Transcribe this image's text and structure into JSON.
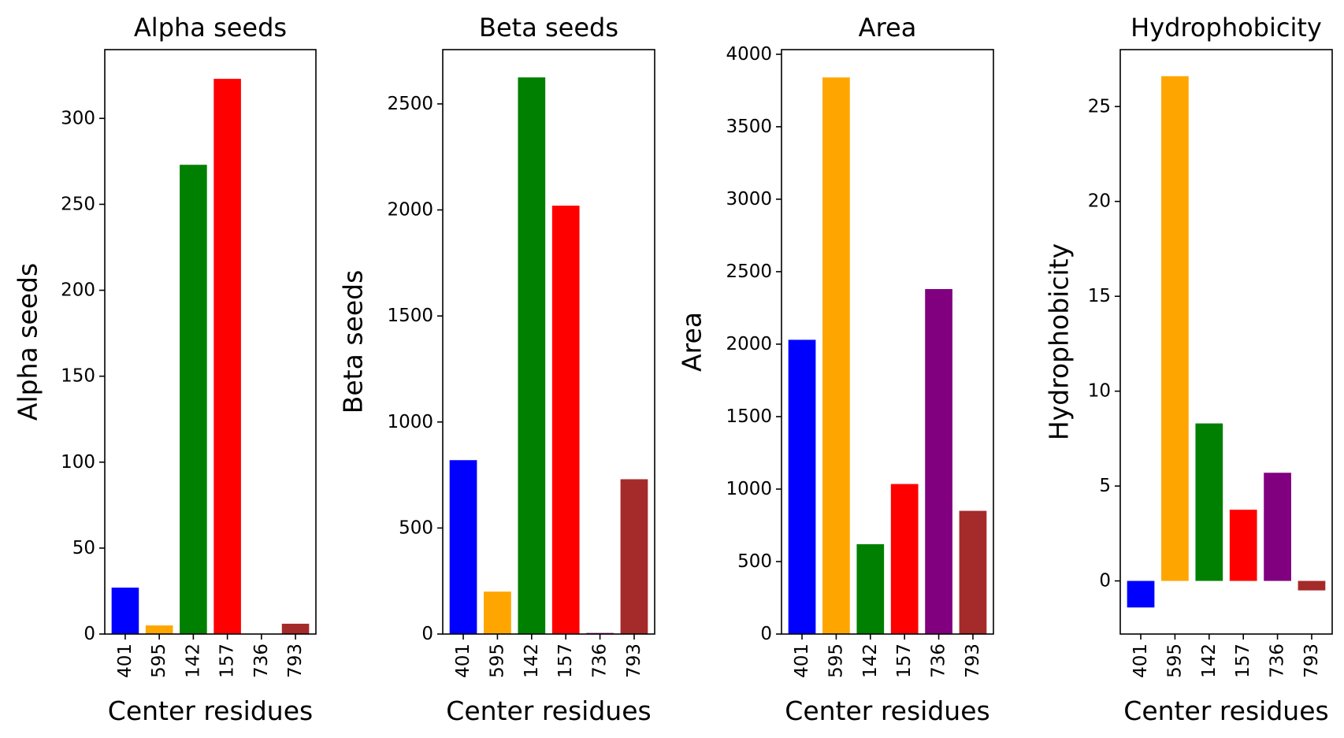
{
  "chart_data": [
    {
      "type": "bar",
      "title": "Alpha seeds",
      "xlabel": "Center residues",
      "ylabel": "Alpha seeds",
      "categories": [
        "401",
        "595",
        "142",
        "157",
        "736",
        "793"
      ],
      "values": [
        27,
        5,
        273,
        323,
        0,
        6
      ],
      "colors": [
        "#0000ff",
        "#ffa500",
        "#008000",
        "#ff0000",
        "#800080",
        "#a52a2a"
      ],
      "ylim": [
        0,
        340
      ],
      "yticks": [
        0,
        50,
        100,
        150,
        200,
        250,
        300
      ],
      "grid": false
    },
    {
      "type": "bar",
      "title": "Beta seeds",
      "xlabel": "Center residues",
      "ylabel": "Beta seeds",
      "categories": [
        "401",
        "595",
        "142",
        "157",
        "736",
        "793"
      ],
      "values": [
        820,
        200,
        2625,
        2020,
        5,
        730
      ],
      "colors": [
        "#0000ff",
        "#ffa500",
        "#008000",
        "#ff0000",
        "#800080",
        "#a52a2a"
      ],
      "ylim": [
        0,
        2756
      ],
      "yticks": [
        0,
        500,
        1000,
        1500,
        2000,
        2500
      ],
      "grid": false
    },
    {
      "type": "bar",
      "title": "Area",
      "xlabel": "Center residues",
      "ylabel": "Area",
      "categories": [
        "401",
        "595",
        "142",
        "157",
        "736",
        "793"
      ],
      "values": [
        2030,
        3840,
        620,
        1035,
        2380,
        850
      ],
      "colors": [
        "#0000ff",
        "#ffa500",
        "#008000",
        "#ff0000",
        "#800080",
        "#a52a2a"
      ],
      "ylim": [
        0,
        4032
      ],
      "yticks": [
        0,
        500,
        1000,
        1500,
        2000,
        2500,
        3000,
        3500,
        4000
      ],
      "grid": false
    },
    {
      "type": "bar",
      "title": "Hydrophobicity",
      "xlabel": "Center residues",
      "ylabel": "Hydrophobicity",
      "categories": [
        "401",
        "595",
        "142",
        "157",
        "736",
        "793"
      ],
      "values": [
        -1.4,
        26.6,
        8.3,
        3.75,
        5.7,
        -0.5
      ],
      "colors": [
        "#0000ff",
        "#ffa500",
        "#008000",
        "#ff0000",
        "#800080",
        "#a52a2a"
      ],
      "ylim": [
        -2.8,
        28.0
      ],
      "yticks": [
        0,
        5,
        10,
        15,
        20,
        25
      ],
      "grid": false
    }
  ]
}
